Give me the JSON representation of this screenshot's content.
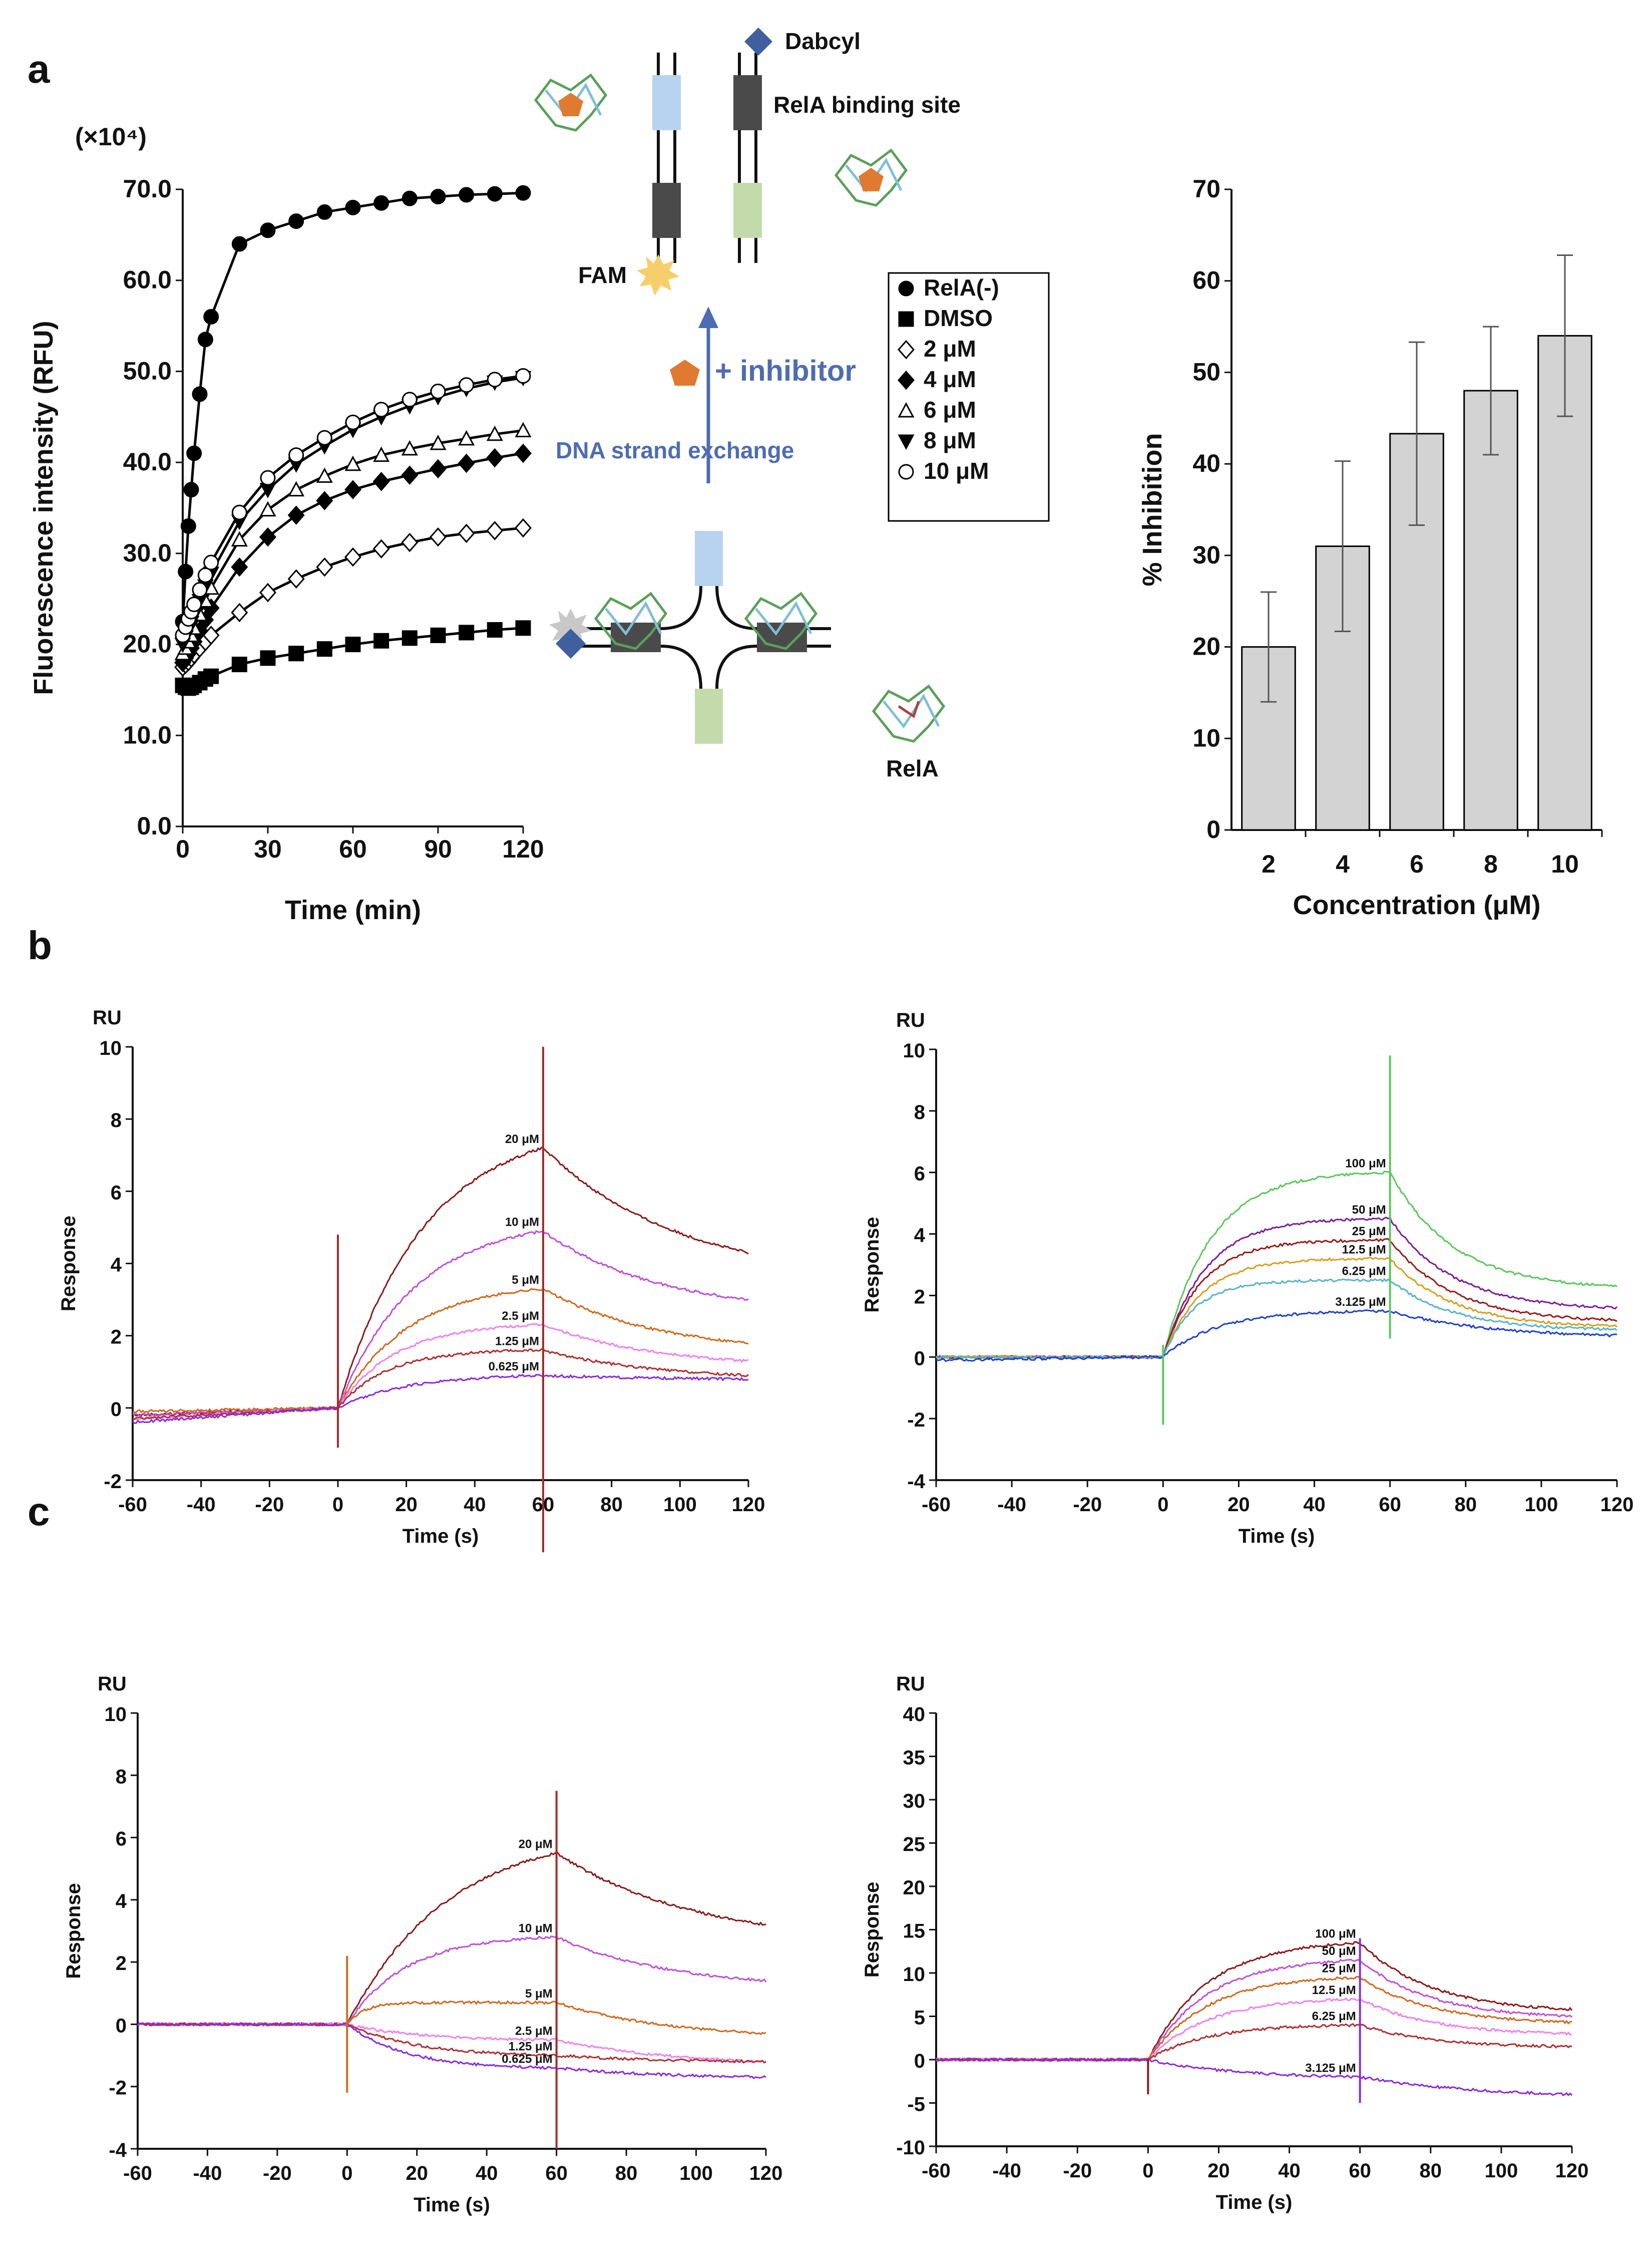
{
  "panel_labels": [
    "a",
    "b",
    "c"
  ],
  "diagram": {
    "dabcyl": "Dabcyl",
    "binding_site": "RelA binding site",
    "fam": "FAM",
    "inhibitor": "+ inhibitor",
    "strand_exchange": "DNA strand exchange",
    "rela": "RelA",
    "colors": {
      "light_blue": "#b8d3ef",
      "light_green": "#c3dbaa",
      "dark": "#4a4a4a",
      "arrow": "#4e6cb3",
      "pentagon": "#e07a30",
      "star": "#f6cf6a",
      "diamond": "#3f5f9f"
    }
  },
  "chart_data": [
    {
      "id": "a-kinetics",
      "type": "scatter",
      "title": "",
      "unit_note": "(×10⁴)",
      "xlabel": "Time (min)",
      "ylabel": "Fluorescence intensity  (RFU)",
      "xlim": [
        0,
        120
      ],
      "ylim": [
        0,
        70
      ],
      "xticks": [
        "0",
        "30",
        "60",
        "90",
        "120"
      ],
      "yticks": [
        "0.0",
        "10.0",
        "20.0",
        "30.0",
        "40.0",
        "50.0",
        "60.0",
        "70.0"
      ],
      "x": [
        0,
        1,
        2,
        3,
        4,
        6,
        8,
        10,
        20,
        30,
        40,
        50,
        60,
        70,
        80,
        90,
        100,
        110,
        120
      ],
      "series": [
        {
          "name": "RelA(-)",
          "marker": "circle-filled",
          "values": [
            22.5,
            28.0,
            33.0,
            37.0,
            41.0,
            47.5,
            53.5,
            56.0,
            64.0,
            65.5,
            66.5,
            67.5,
            68.0,
            68.5,
            69.0,
            69.2,
            69.4,
            69.5,
            69.6
          ]
        },
        {
          "name": "DMSO",
          "marker": "square-filled",
          "values": [
            15.5,
            15.3,
            15.2,
            15.3,
            15.5,
            15.8,
            16.2,
            16.5,
            17.8,
            18.5,
            19.0,
            19.5,
            20.0,
            20.4,
            20.7,
            21.0,
            21.3,
            21.6,
            21.8
          ]
        },
        {
          "name": "2 μM",
          "marker": "diamond-open",
          "values": [
            17.5,
            17.8,
            18.1,
            18.5,
            18.9,
            19.6,
            20.3,
            21.0,
            23.5,
            25.7,
            27.2,
            28.5,
            29.6,
            30.5,
            31.2,
            31.8,
            32.2,
            32.5,
            32.8
          ]
        },
        {
          "name": "4 μM",
          "marker": "diamond-filled",
          "values": [
            18.0,
            18.5,
            19.0,
            19.6,
            20.3,
            21.5,
            22.7,
            24.0,
            28.5,
            31.8,
            34.2,
            35.8,
            37.0,
            37.9,
            38.6,
            39.3,
            39.9,
            40.5,
            41.0
          ]
        },
        {
          "name": "6 μM",
          "marker": "triangle-open",
          "values": [
            19.0,
            19.6,
            20.3,
            21.0,
            21.8,
            23.3,
            24.8,
            26.2,
            31.5,
            34.8,
            37.0,
            38.5,
            39.8,
            40.8,
            41.5,
            42.1,
            42.6,
            43.1,
            43.5
          ]
        },
        {
          "name": "8 μM",
          "marker": "triangle-down-filled",
          "values": [
            20.0,
            20.8,
            21.6,
            22.4,
            23.2,
            24.8,
            26.4,
            27.8,
            33.5,
            37.0,
            39.8,
            41.8,
            43.6,
            45.0,
            46.2,
            47.2,
            48.1,
            48.8,
            49.3
          ]
        },
        {
          "name": "10 μM",
          "marker": "circle-open",
          "values": [
            21.0,
            21.9,
            22.8,
            23.6,
            24.4,
            26.0,
            27.6,
            29.0,
            34.5,
            38.3,
            40.8,
            42.7,
            44.4,
            45.8,
            46.9,
            47.8,
            48.5,
            49.1,
            49.5
          ]
        }
      ],
      "legend": [
        "RelA(-)",
        "DMSO",
        "2 μM",
        "4 μM",
        "6 μM",
        "8 μM",
        "10 μM"
      ]
    },
    {
      "id": "a-inhibition",
      "type": "bar",
      "xlabel": "Concentration (μM)",
      "ylabel": "% Inhibition",
      "ylim": [
        0,
        70
      ],
      "yticks": [
        "0",
        "10",
        "20",
        "30",
        "40",
        "50",
        "60",
        "70"
      ],
      "categories": [
        "2",
        "4",
        "6",
        "8",
        "10"
      ],
      "values": [
        20.0,
        31.0,
        43.3,
        48.0,
        54.0
      ],
      "errors": [
        6.0,
        9.3,
        10.0,
        7.0,
        8.8
      ],
      "bar_color": "#d3d3d3"
    },
    {
      "id": "b-left",
      "type": "line",
      "unit_note": "RU",
      "xlabel": "Time (s)",
      "ylabel": "Response",
      "xlim": [
        -60,
        120
      ],
      "ylim": [
        -2,
        10
      ],
      "xticks": [
        "-60",
        "-40",
        "-20",
        "0",
        "20",
        "40",
        "60",
        "80",
        "100",
        "120"
      ],
      "yticks": [
        "-2",
        "0",
        "2",
        "4",
        "6",
        "8",
        "10"
      ],
      "spikes": [
        {
          "t": 0,
          "top": 4.8,
          "bottom": -1.1,
          "color": "#a52a2a"
        },
        {
          "t": 60,
          "top": 10.0,
          "bottom": -4.0,
          "color": "#a52a2a"
        }
      ],
      "series": [
        {
          "name": "20 μM",
          "color": "#8b1a1a",
          "pre": -0.2,
          "assoc_end": 7.2,
          "assoc_k": 0.04,
          "dissoc_end": 4.3,
          "dissoc_k": 0.025
        },
        {
          "name": "10 μM",
          "color": "#c050d8",
          "pre": -0.2,
          "assoc_end": 4.9,
          "assoc_k": 0.045,
          "dissoc_end": 3.0,
          "dissoc_k": 0.03
        },
        {
          "name": "5 μM",
          "color": "#d2691e",
          "pre": -0.1,
          "assoc_end": 3.3,
          "assoc_k": 0.05,
          "dissoc_end": 1.8,
          "dissoc_k": 0.03
        },
        {
          "name": "2.5 μM",
          "color": "#ee82ee",
          "pre": -0.3,
          "assoc_end": 2.3,
          "assoc_k": 0.06,
          "dissoc_end": 1.3,
          "dissoc_k": 0.03
        },
        {
          "name": "1.25 μM",
          "color": "#b03030",
          "pre": -0.3,
          "assoc_end": 1.6,
          "assoc_k": 0.07,
          "dissoc_end": 0.9,
          "dissoc_k": 0.03
        },
        {
          "name": "0.625 μM",
          "color": "#8a2be2",
          "pre": -0.4,
          "assoc_end": 0.9,
          "assoc_k": 0.05,
          "dissoc_end": 0.8,
          "dissoc_k": 0.03
        }
      ]
    },
    {
      "id": "b-right",
      "type": "line",
      "unit_note": "RU",
      "xlabel": "Time (s)",
      "ylabel": "Response",
      "xlim": [
        -60,
        120
      ],
      "ylim": [
        -4,
        10
      ],
      "xticks": [
        "-60",
        "-40",
        "-20",
        "0",
        "20",
        "40",
        "60",
        "80",
        "100",
        "120"
      ],
      "yticks": [
        "-4",
        "-2",
        "0",
        "2",
        "4",
        "6",
        "8",
        "10"
      ],
      "spikes": [
        {
          "t": 0,
          "top": 0.4,
          "bottom": -2.2,
          "color": "#5ac85a"
        },
        {
          "t": 60,
          "top": 9.8,
          "bottom": 0.6,
          "color": "#5ac85a"
        }
      ],
      "series": [
        {
          "name": "100 μM",
          "color": "#5ac85a",
          "pre": 0.0,
          "assoc_end": 6.0,
          "assoc_k": 0.08,
          "dissoc_end": 2.3,
          "dissoc_k": 0.06
        },
        {
          "name": "50 μM",
          "color": "#7a1f9a",
          "pre": 0.0,
          "assoc_end": 4.5,
          "assoc_k": 0.09,
          "dissoc_end": 1.6,
          "dissoc_k": 0.06
        },
        {
          "name": "25 μM",
          "color": "#9b1b1b",
          "pre": 0.0,
          "assoc_end": 3.8,
          "assoc_k": 0.1,
          "dissoc_end": 1.2,
          "dissoc_k": 0.06
        },
        {
          "name": "12.5 μM",
          "color": "#d6a020",
          "pre": 0.0,
          "assoc_end": 3.2,
          "assoc_k": 0.1,
          "dissoc_end": 1.0,
          "dissoc_k": 0.06
        },
        {
          "name": "6.25 μM",
          "color": "#5ab4c8",
          "pre": 0.0,
          "assoc_end": 2.5,
          "assoc_k": 0.12,
          "dissoc_end": 0.9,
          "dissoc_k": 0.06
        },
        {
          "name": "3.125 μM",
          "color": "#2040d0",
          "pre": -0.1,
          "assoc_end": 1.5,
          "assoc_k": 0.07,
          "dissoc_end": 0.7,
          "dissoc_k": 0.04
        }
      ]
    },
    {
      "id": "c-left",
      "type": "line",
      "unit_note": "RU",
      "xlabel": "Time (s)",
      "ylabel": "Response",
      "xlim": [
        -60,
        120
      ],
      "ylim": [
        -4,
        10
      ],
      "xticks": [
        "-60",
        "-40",
        "-20",
        "0",
        "20",
        "40",
        "60",
        "80",
        "100",
        "120"
      ],
      "yticks": [
        "-4",
        "-2",
        "0",
        "2",
        "4",
        "6",
        "8",
        "10"
      ],
      "spikes": [
        {
          "t": 0,
          "top": 2.2,
          "bottom": -2.2,
          "color": "#d2691e"
        },
        {
          "t": 60,
          "top": 7.5,
          "bottom": -4.0,
          "color": "#a52a2a"
        }
      ],
      "series": [
        {
          "name": "20 μM",
          "color": "#8b1a1a",
          "pre": 0.0,
          "assoc_end": 5.5,
          "assoc_k": 0.035,
          "dissoc_end": 3.2,
          "dissoc_k": 0.025
        },
        {
          "name": "10 μM",
          "color": "#c050d8",
          "pre": 0.0,
          "assoc_end": 2.8,
          "assoc_k": 0.06,
          "dissoc_end": 1.4,
          "dissoc_k": 0.03
        },
        {
          "name": "5 μM",
          "color": "#d2691e",
          "pre": 0.0,
          "assoc_end": 0.7,
          "assoc_k": 0.2,
          "dissoc_end": -0.3,
          "dissoc_k": 0.03
        },
        {
          "name": "2.5 μM",
          "color": "#ee82ee",
          "pre": 0.0,
          "assoc_end": -0.5,
          "assoc_k": 0.05,
          "dissoc_end": -1.2,
          "dissoc_k": 0.03
        },
        {
          "name": "1.25 μM",
          "color": "#b03030",
          "pre": 0.0,
          "assoc_end": -1.0,
          "assoc_k": 0.05,
          "dissoc_end": -1.2,
          "dissoc_k": 0.03
        },
        {
          "name": "0.625 μM",
          "color": "#8a2be2",
          "pre": 0.0,
          "assoc_end": -1.4,
          "assoc_k": 0.06,
          "dissoc_end": -1.7,
          "dissoc_k": 0.03
        }
      ]
    },
    {
      "id": "c-right",
      "type": "line",
      "unit_note": "RU",
      "xlabel": "Time (s)",
      "ylabel": "Response",
      "xlim": [
        -60,
        120
      ],
      "ylim": [
        -10,
        40
      ],
      "xticks": [
        "-60",
        "-40",
        "-20",
        "0",
        "20",
        "40",
        "60",
        "80",
        "100",
        "120"
      ],
      "yticks": [
        "-10",
        "-5",
        "0",
        "5",
        "10",
        "15",
        "20",
        "25",
        "30",
        "35",
        "40"
      ],
      "spikes": [
        {
          "t": 0,
          "top": 0.0,
          "bottom": -4.0,
          "color": "#8b1a1a"
        },
        {
          "t": 60,
          "top": 14.0,
          "bottom": -5.0,
          "color": "#8a2be2"
        }
      ],
      "series": [
        {
          "name": "100 μM",
          "color": "#8b1a1a",
          "pre": 0.0,
          "assoc_end": 13.5,
          "assoc_k": 0.06,
          "dissoc_end": 5.8,
          "dissoc_k": 0.05
        },
        {
          "name": "50 μM",
          "color": "#c050d8",
          "pre": 0.0,
          "assoc_end": 11.5,
          "assoc_k": 0.06,
          "dissoc_end": 5.0,
          "dissoc_k": 0.05
        },
        {
          "name": "25 μM",
          "color": "#d2691e",
          "pre": 0.0,
          "assoc_end": 9.5,
          "assoc_k": 0.06,
          "dissoc_end": 4.3,
          "dissoc_k": 0.05
        },
        {
          "name": "12.5 μM",
          "color": "#ee82ee",
          "pre": 0.0,
          "assoc_end": 7.0,
          "assoc_k": 0.06,
          "dissoc_end": 3.0,
          "dissoc_k": 0.05
        },
        {
          "name": "6.25 μM",
          "color": "#b03030",
          "pre": 0.0,
          "assoc_end": 4.0,
          "assoc_k": 0.06,
          "dissoc_end": 1.5,
          "dissoc_k": 0.05
        },
        {
          "name": "3.125 μM",
          "color": "#8a2be2",
          "pre": 0.0,
          "assoc_end": -2.0,
          "assoc_k": 0.04,
          "dissoc_end": -4.0,
          "dissoc_k": 0.03
        }
      ]
    }
  ]
}
